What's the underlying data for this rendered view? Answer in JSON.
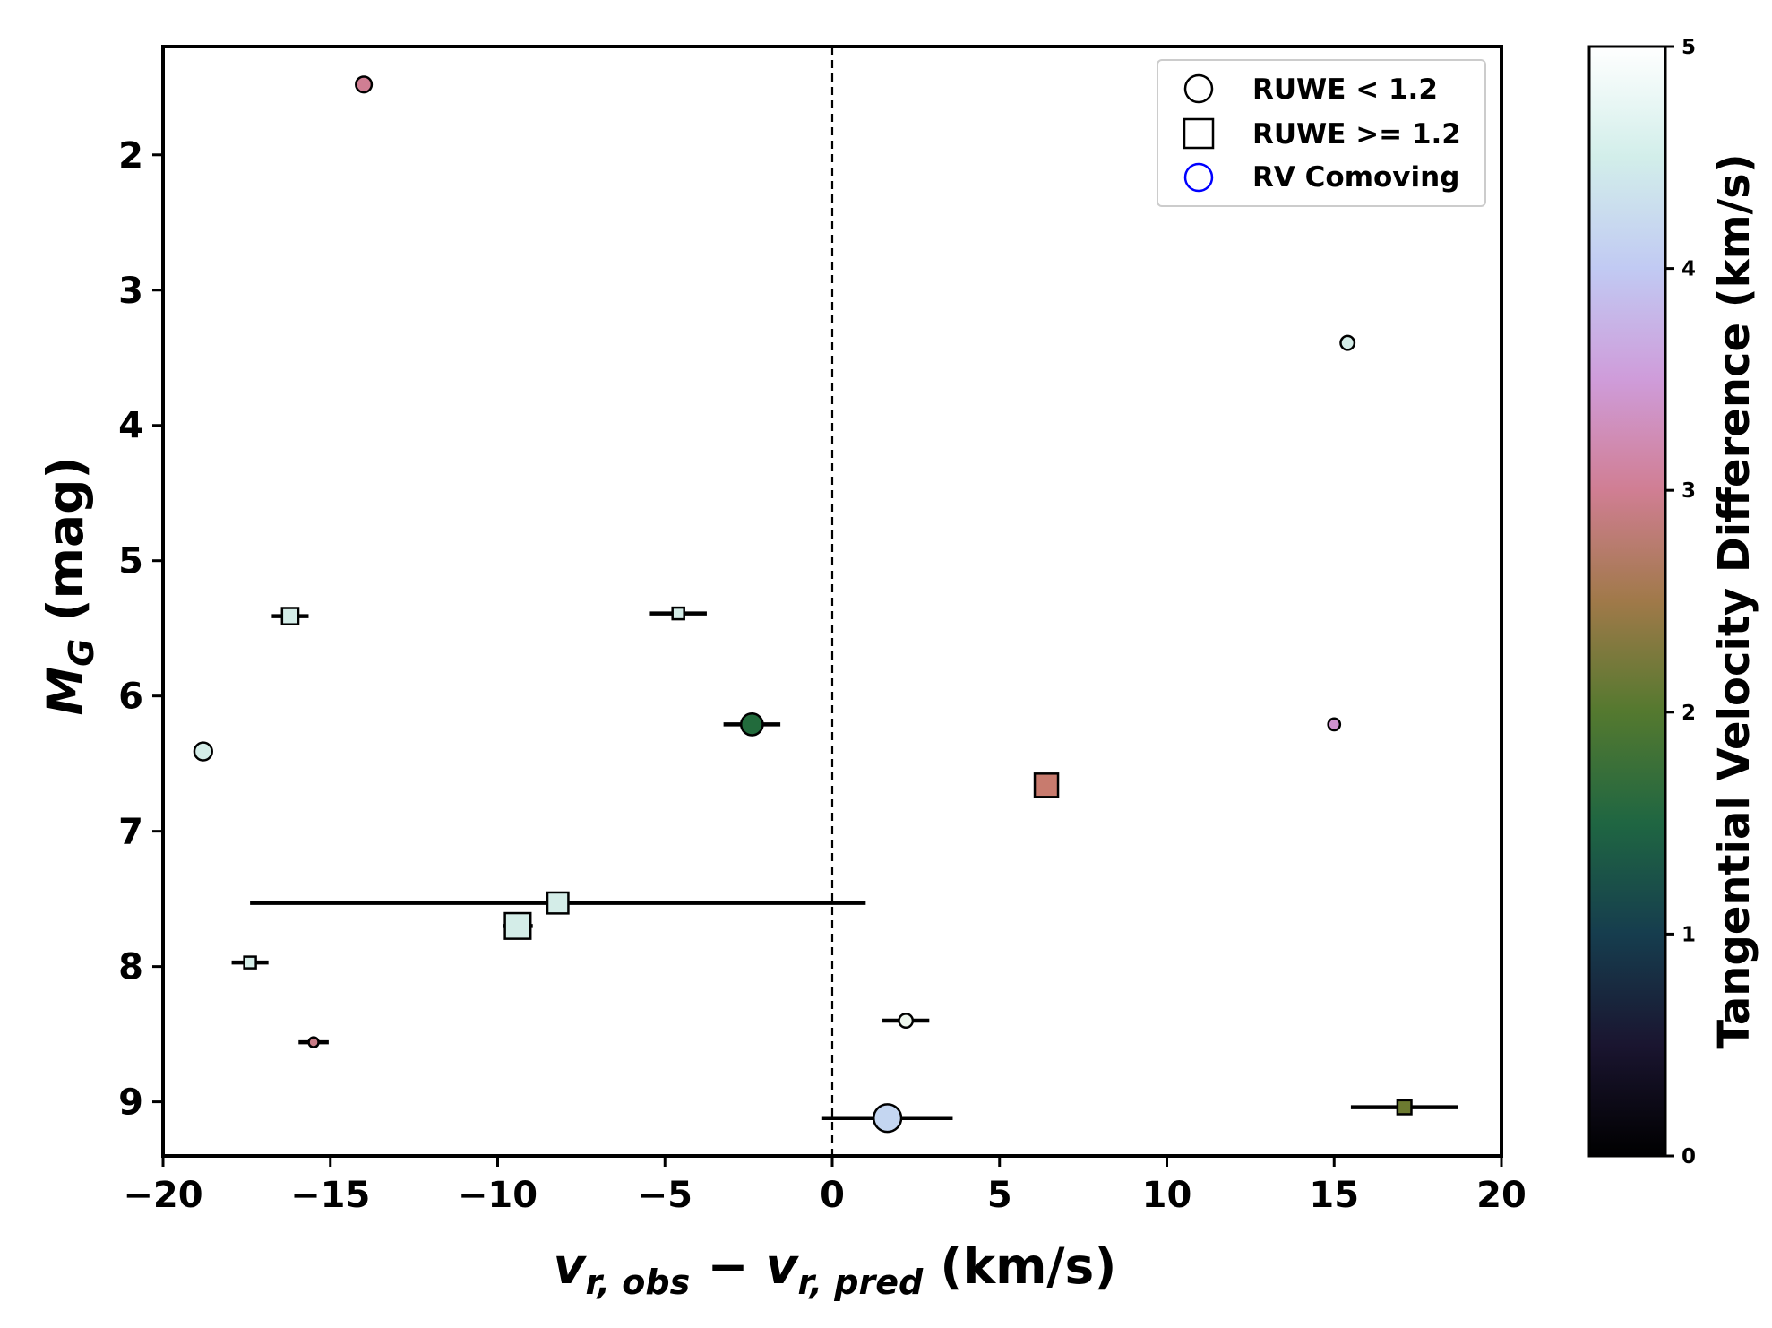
{
  "chart_data": {
    "type": "scatter",
    "xlabel": "v_{r,obs} − v_{r,pred} (km/s)",
    "xlabel_parts": {
      "v1": "v",
      "sub1": "r, obs",
      "minus": " − ",
      "v2": "v",
      "sub2": "r, pred",
      "units": " (km/s)"
    },
    "ylabel_parts": {
      "main": "M",
      "sub": "G",
      "units": " (mag)"
    },
    "xlim": [
      -20,
      20
    ],
    "ylim": [
      9.4,
      1.2
    ],
    "y_inverted": true,
    "x_ticks": [
      -20,
      -15,
      -10,
      -5,
      0,
      5,
      10,
      15,
      20
    ],
    "x_tick_labels": [
      "−20",
      "−15",
      "−10",
      "−5",
      "0",
      "5",
      "10",
      "15",
      "20"
    ],
    "y_ticks": [
      2,
      3,
      4,
      5,
      6,
      7,
      8,
      9
    ],
    "y_tick_labels": [
      "2",
      "3",
      "4",
      "5",
      "6",
      "7",
      "8",
      "9"
    ],
    "reference_line": {
      "x": 0,
      "style": "dashed"
    },
    "colorbar": {
      "label": "Tangential Velocity Difference (km/s)",
      "range": [
        0,
        5
      ],
      "ticks": [
        0,
        1,
        2,
        3,
        4,
        5
      ],
      "tick_labels": [
        "0",
        "1",
        "2",
        "3",
        "4",
        "5"
      ],
      "colormap": "cubehelix",
      "gradient": [
        "#000000",
        "#1a1530",
        "#163d4e",
        "#1f6642",
        "#54792f",
        "#a07949",
        "#d07e93",
        "#cf9cda",
        "#c1caf3",
        "#d2eeea",
        "#ffffff"
      ]
    },
    "legend": {
      "placement": "top-right",
      "entries": [
        {
          "label": "RUWE < 1.2",
          "marker": "circle",
          "edge": "#000000"
        },
        {
          "label": "RUWE >= 1.2",
          "marker": "square",
          "edge": "#000000"
        },
        {
          "label": "RV Comoving",
          "marker": "circle",
          "edge": "#0000ff"
        }
      ]
    },
    "points": [
      {
        "x": -14.0,
        "y": 1.48,
        "marker": "circle",
        "size": 8,
        "color": "#d07e93",
        "xerr": 0
      },
      {
        "x": 15.4,
        "y": 3.39,
        "marker": "circle",
        "size": 7,
        "color": "#d4ede8",
        "xerr": 0
      },
      {
        "x": -16.2,
        "y": 5.41,
        "marker": "square",
        "size": 7,
        "color": "#d4ede8",
        "xerr": 0.55
      },
      {
        "x": -4.6,
        "y": 5.39,
        "marker": "square",
        "size": 5,
        "color": "#d4ede8",
        "xerr": 0.85
      },
      {
        "x": -2.4,
        "y": 6.21,
        "marker": "circle",
        "size": 11,
        "color": "#226b3c",
        "xerr": 0.85
      },
      {
        "x": -18.8,
        "y": 6.41,
        "marker": "circle",
        "size": 9,
        "color": "#d4ede8",
        "xerr": 0
      },
      {
        "x": 15.0,
        "y": 6.21,
        "marker": "circle",
        "size": 6,
        "color": "#cf91cf",
        "xerr": 0
      },
      {
        "x": 6.4,
        "y": 6.66,
        "marker": "square",
        "size": 10,
        "color": "#c87b6e",
        "xerr": 0
      },
      {
        "x": -8.2,
        "y": 7.53,
        "marker": "square",
        "size": 9,
        "color": "#d4ede8",
        "xerr": 9.2
      },
      {
        "x": -9.4,
        "y": 7.7,
        "marker": "square",
        "size": 11,
        "color": "#d4ede8",
        "xerr": 0.45
      },
      {
        "x": -17.4,
        "y": 7.97,
        "marker": "square",
        "size": 5,
        "color": "#d4ede8",
        "xerr": 0.55
      },
      {
        "x": 2.2,
        "y": 8.4,
        "marker": "circle",
        "size": 7,
        "color": "#eef7ee",
        "xerr": 0.7
      },
      {
        "x": -15.5,
        "y": 8.56,
        "marker": "circle",
        "size": 5,
        "color": "#c87b86",
        "xerr": 0.45
      },
      {
        "x": 1.65,
        "y": 9.12,
        "marker": "circle",
        "size": 14,
        "color": "#c4d6f1",
        "xerr": 1.95
      },
      {
        "x": 17.1,
        "y": 9.04,
        "marker": "square",
        "size": 6,
        "color": "#6c7a30",
        "xerr": 1.6
      }
    ]
  }
}
